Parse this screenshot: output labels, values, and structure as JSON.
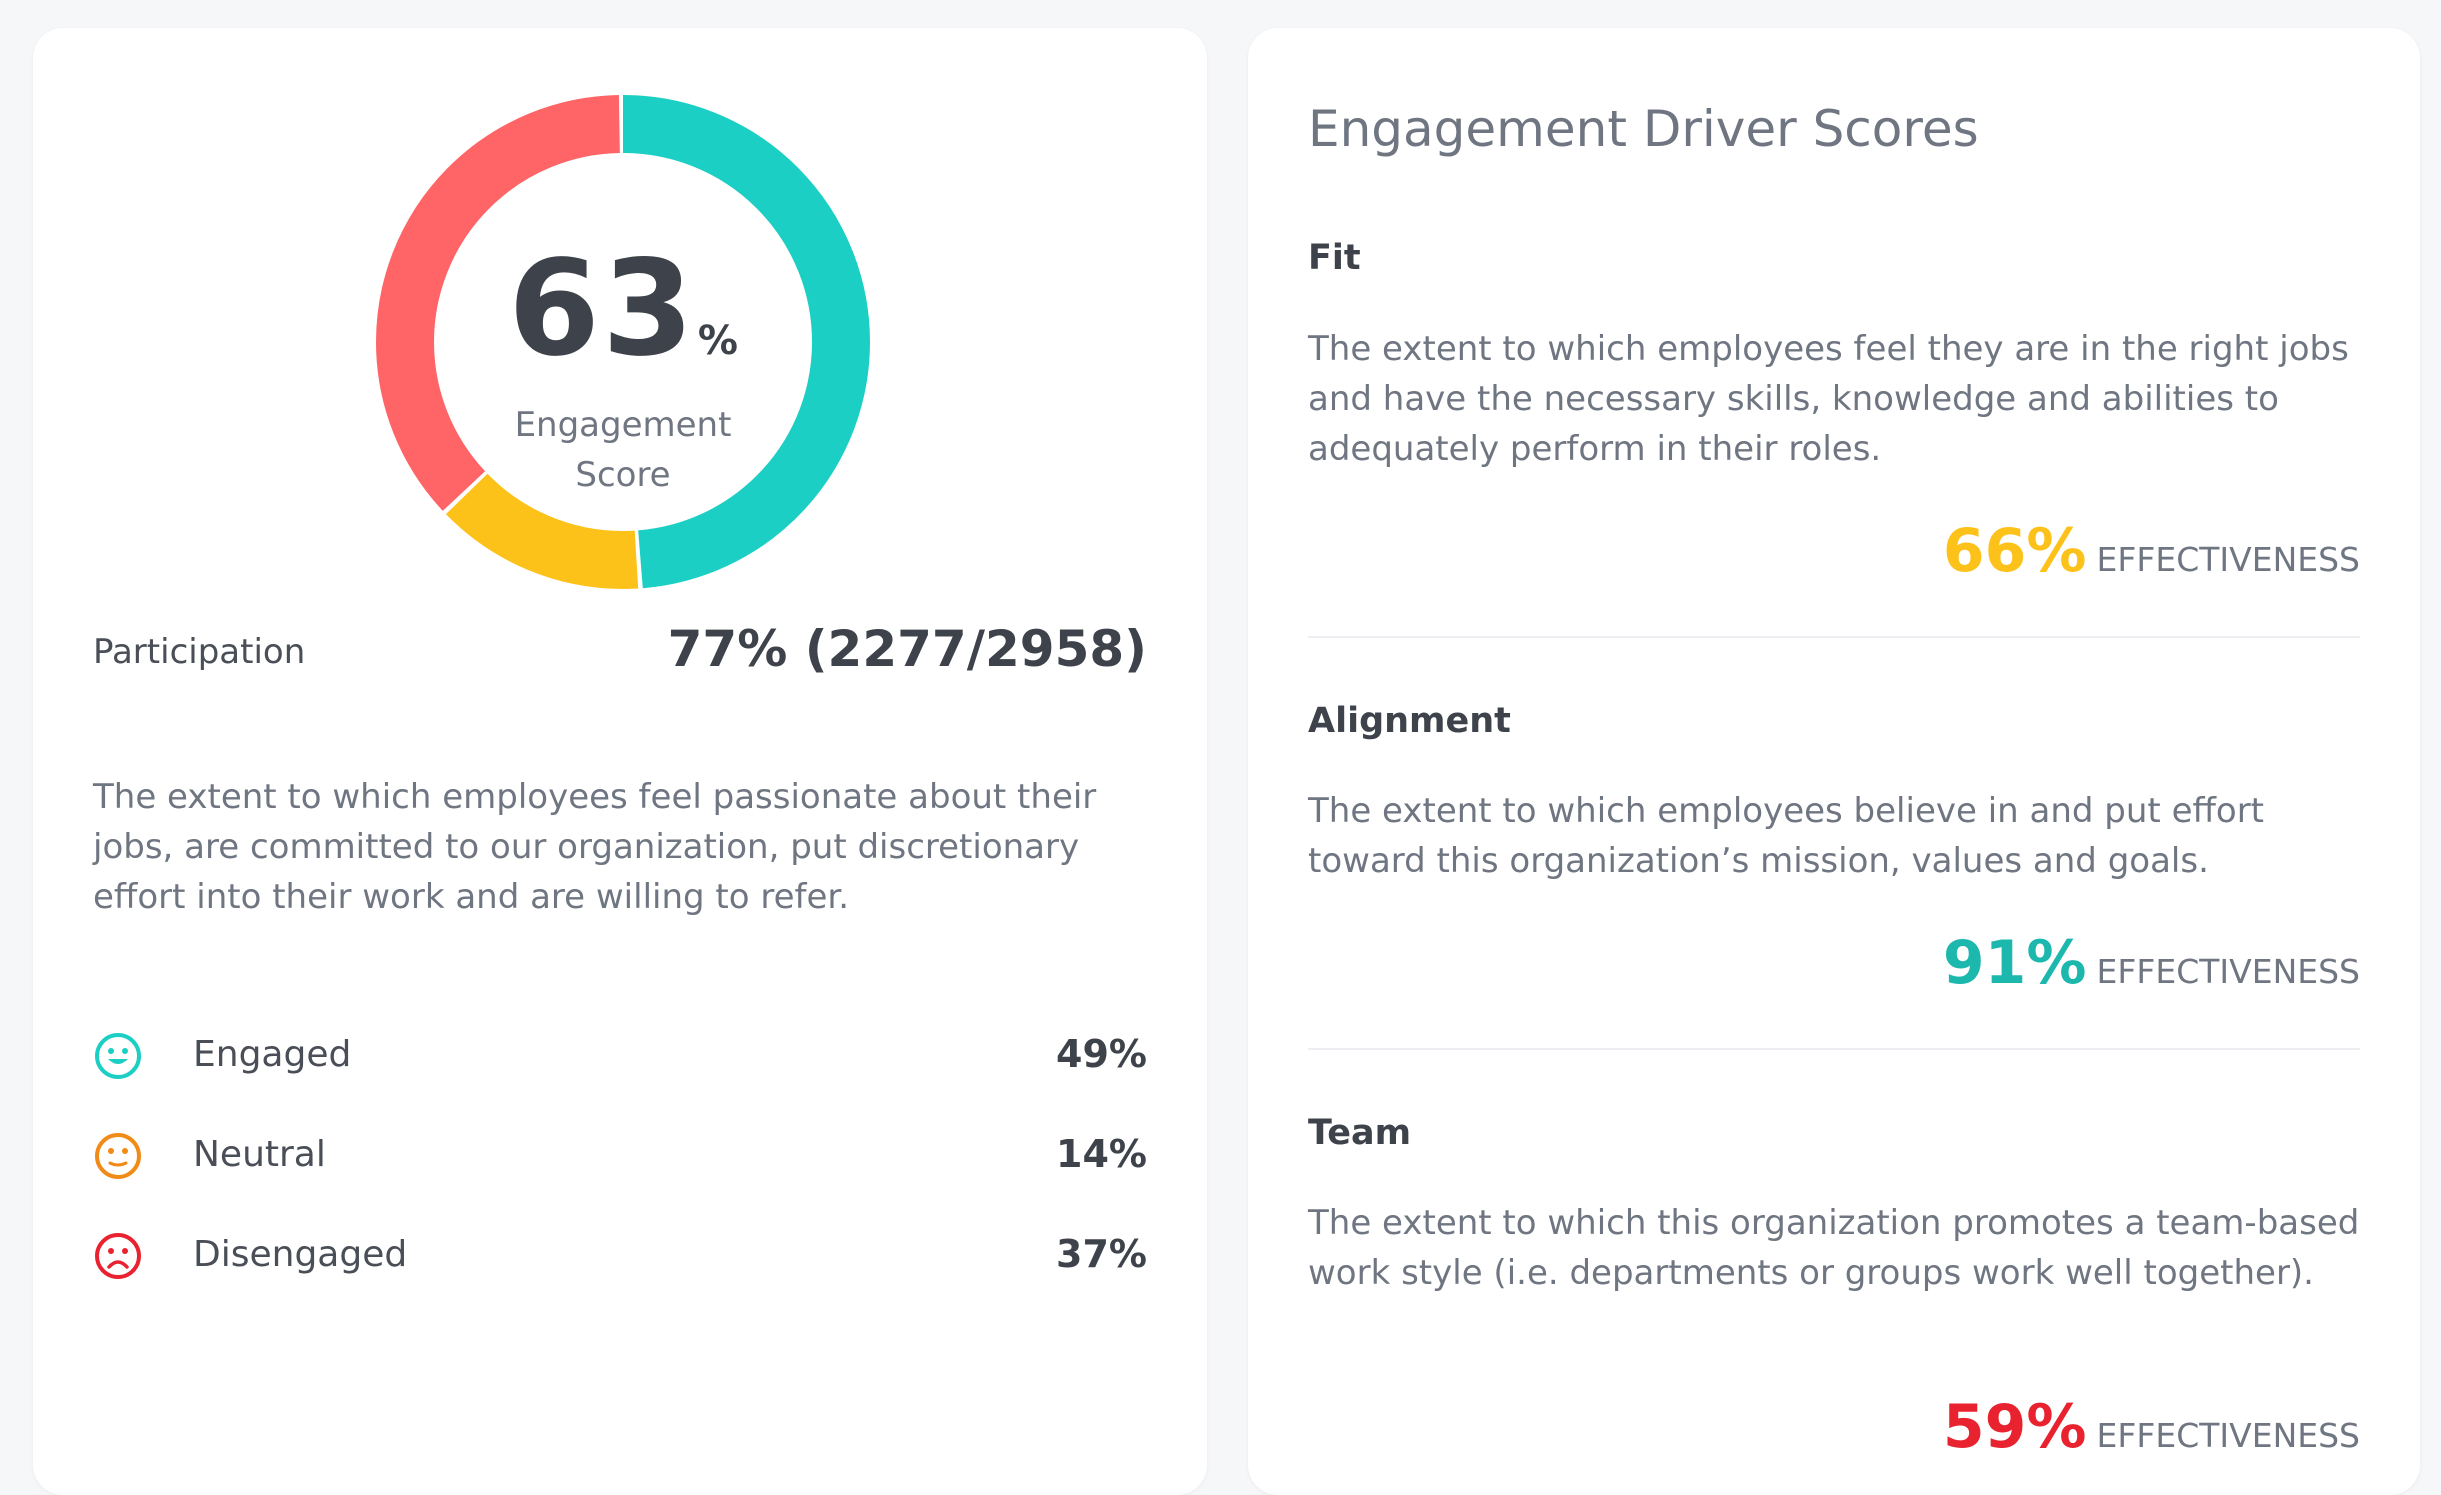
{
  "engagement": {
    "score": "63",
    "score_unit": "%",
    "label": "Engagement Score",
    "participation_label": "Participation",
    "participation_value": "77% (2277/2958)",
    "description": "The extent to which employees feel passionate about their jobs, are committed to our organization, put discretionary effort into their work and are willing to refer.",
    "breakdown": [
      {
        "label": "Engaged",
        "value": "49%",
        "icon": "happy-face-icon",
        "color": "#1ccfc4",
        "fraction": 0.49
      },
      {
        "label": "Neutral",
        "value": "14%",
        "icon": "neutral-face-icon",
        "color": "#f28a18",
        "fraction": 0.14
      },
      {
        "label": "Disengaged",
        "value": "37%",
        "icon": "sad-face-icon",
        "color": "#e8232f",
        "fraction": 0.37
      }
    ],
    "donut_colors": {
      "engaged": "#1ccfc4",
      "neutral": "#fdc21a",
      "disengaged": "#ff6467"
    }
  },
  "drivers": {
    "title": "Engagement Driver Scores",
    "items": [
      {
        "name": "Fit",
        "description": "The extent to which employees feel they are in the right jobs and have the necessary skills, knowledge and abilities to adequately perform in their roles.",
        "value": "66%",
        "suffix": "EFFECTIVENESS",
        "color": "#fdc21a"
      },
      {
        "name": "Alignment",
        "description": "The extent to which employees believe in and put effort toward this organization’s mission, values and goals.",
        "value": "91%",
        "suffix": "EFFECTIVENESS",
        "color": "#1cb8ad"
      },
      {
        "name": "Team",
        "description": "The extent to which this organization promotes a team-based work style (i.e. departments or groups work well together).",
        "value": "59%",
        "suffix": "EFFECTIVENESS",
        "color": "#e8232f"
      }
    ]
  }
}
